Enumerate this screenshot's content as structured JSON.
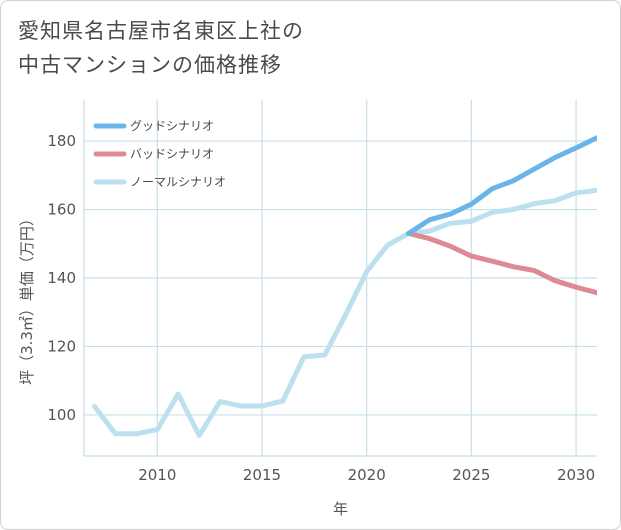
{
  "title_lines": [
    "愛知県名古屋市名東区上社の",
    "中古マンションの価格推移"
  ],
  "chart_data": {
    "type": "line",
    "title": "愛知県名古屋市名東区上社の中古マンションの価格推移",
    "xlabel": "年",
    "ylabel": "坪（3.3㎡）単価（万円）",
    "xlim": [
      2006.5,
      2031
    ],
    "ylim": [
      88,
      192
    ],
    "xticks": [
      2010,
      2015,
      2020,
      2025,
      2030
    ],
    "yticks": [
      100,
      120,
      140,
      160,
      180
    ],
    "grid": true,
    "legend_position": "top-left",
    "series": [
      {
        "name": "グッドシナリオ",
        "color": "#6ab4ea",
        "x": [
          2022,
          2023,
          2024,
          2025,
          2026,
          2027,
          2028,
          2029,
          2030,
          2031
        ],
        "y": [
          153,
          157,
          158.7,
          161.6,
          166.1,
          168.4,
          171.8,
          175.2,
          178,
          181
        ]
      },
      {
        "name": "バッドシナリオ",
        "color": "#de8a94",
        "x": [
          2022,
          2023,
          2024,
          2025,
          2026,
          2027,
          2028,
          2029,
          2030,
          2031
        ],
        "y": [
          153,
          151.5,
          149.3,
          146.4,
          144.9,
          143.3,
          142.2,
          139.2,
          137.3,
          135.7
        ]
      },
      {
        "name": "ノーマルシナリオ",
        "color": "#bde0ee",
        "x": [
          2007,
          2008,
          2009,
          2010,
          2011,
          2012,
          2013,
          2014,
          2015,
          2016,
          2017,
          2018,
          2019,
          2020,
          2021,
          2022,
          2023,
          2024,
          2025,
          2026,
          2027,
          2028,
          2029,
          2030,
          2031
        ],
        "y": [
          102.5,
          94.5,
          94.5,
          95.7,
          106.1,
          94,
          103.9,
          102.6,
          102.6,
          104.1,
          117,
          117.5,
          129.3,
          141.9,
          149.6,
          153,
          153.7,
          156,
          156.6,
          159.2,
          160,
          161.7,
          162.6,
          164.9,
          165.6
        ]
      }
    ]
  }
}
